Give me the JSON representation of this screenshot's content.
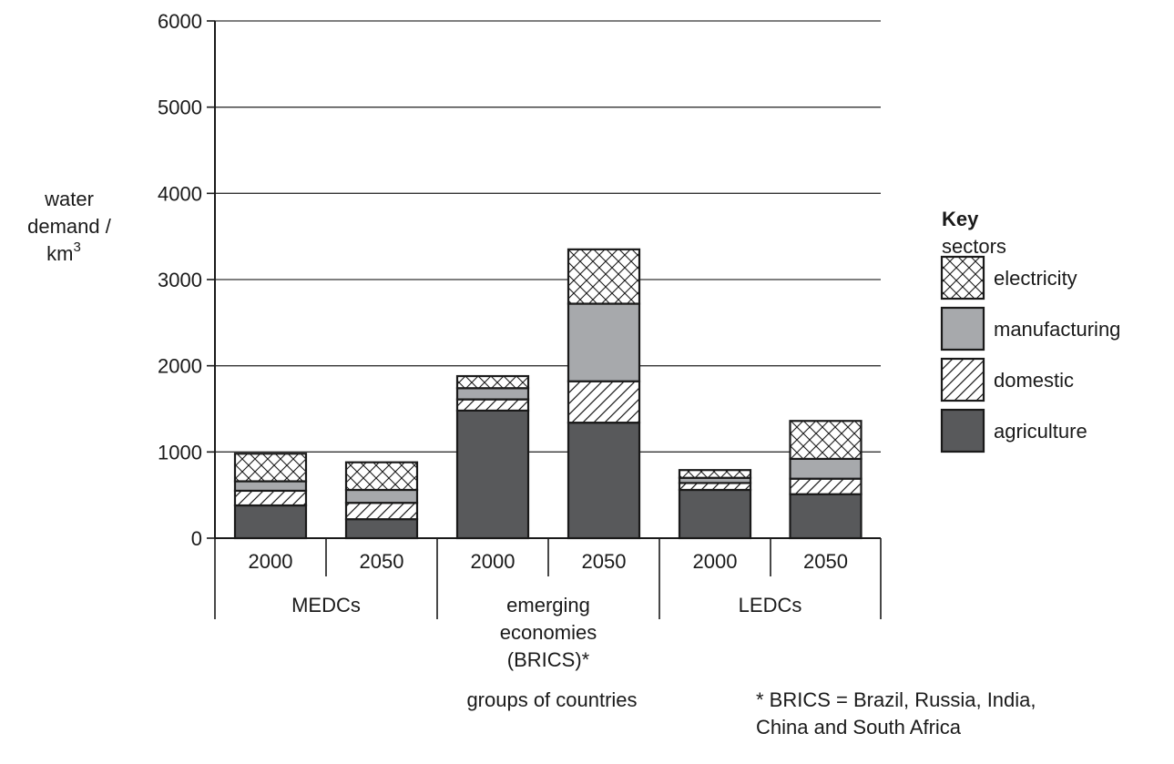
{
  "chart_data": {
    "type": "bar",
    "stacked": true,
    "ylabel_lines": [
      "water",
      "demand /",
      "km"
    ],
    "ylabel_sup": "3",
    "xlabel": "groups of countries",
    "ylim": [
      0,
      6000
    ],
    "yticks": [
      0,
      1000,
      2000,
      3000,
      4000,
      5000,
      6000
    ],
    "grid": true,
    "groups": [
      {
        "label_lines": [
          "MEDCs"
        ],
        "years": [
          "2000",
          "2050"
        ]
      },
      {
        "label_lines": [
          "emerging",
          "economies",
          "(BRICS)*"
        ],
        "years": [
          "2000",
          "2050"
        ]
      },
      {
        "label_lines": [
          "LEDCs"
        ],
        "years": [
          "2000",
          "2050"
        ]
      }
    ],
    "series": [
      {
        "name": "agriculture",
        "pattern": "solid-dark",
        "values": [
          380,
          220,
          1480,
          1340,
          560,
          510
        ]
      },
      {
        "name": "domestic",
        "pattern": "diagonal-hatch",
        "values": [
          170,
          190,
          130,
          480,
          80,
          180
        ]
      },
      {
        "name": "manufacturing",
        "pattern": "solid-grey",
        "values": [
          110,
          150,
          130,
          900,
          60,
          230
        ]
      },
      {
        "name": "electricity",
        "pattern": "cross-hatch",
        "values": [
          320,
          320,
          140,
          630,
          90,
          440
        ]
      }
    ],
    "legend": {
      "title": "Key",
      "subtitle": "sectors",
      "position": "right",
      "order": [
        "electricity",
        "manufacturing",
        "domestic",
        "agriculture"
      ]
    },
    "footnote_lines": [
      "* BRICS = Brazil, Russia, India,",
      "China and South Africa"
    ],
    "colors": {
      "agriculture": "#58595b",
      "manufacturing": "#a7a9ac",
      "outline": "#1a1a1a",
      "grid": "#333333"
    }
  }
}
